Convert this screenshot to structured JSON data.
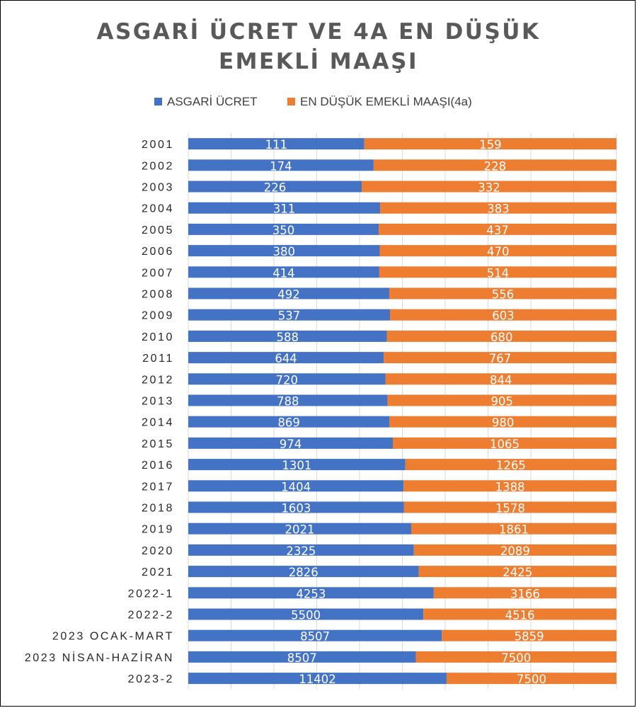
{
  "chart_data": {
    "type": "bar",
    "orientation": "horizontal",
    "stacked": "100%",
    "title_lines": [
      "ASGARİ ÜCRET VE 4A EN DÜŞÜK",
      "EMEKLİ MAAŞI"
    ],
    "legend_position": "top",
    "colors": {
      "asgari": "#4472C4",
      "emekli": "#ED7D31",
      "grid": "#D9D9D9"
    },
    "categories": [
      "2001",
      "2002",
      "2003",
      "2004",
      "2005",
      "2006",
      "2007",
      "2008",
      "2009",
      "2010",
      "2011",
      "2012",
      "2013",
      "2014",
      "2015",
      "2016",
      "2017",
      "2018",
      "2019",
      "2020",
      "2021",
      "2022-1",
      "2022-2",
      "2023 OCAK-MART",
      "2023 NİSAN-HAZİRAN",
      "2023-2"
    ],
    "series": [
      {
        "name": "ASGARİ ÜCRET",
        "color": "#4472C4",
        "values": [
          111,
          174,
          226,
          311,
          350,
          380,
          414,
          492,
          537,
          588,
          644,
          720,
          788,
          869,
          974,
          1301,
          1404,
          1603,
          2021,
          2325,
          2826,
          4253,
          5500,
          8507,
          8507,
          11402
        ]
      },
      {
        "name": "EN DÜŞÜK EMEKLİ MAAŞI(4a)",
        "color": "#ED7D31",
        "values": [
          159,
          228,
          332,
          383,
          437,
          470,
          514,
          556,
          603,
          680,
          767,
          844,
          905,
          980,
          1065,
          1265,
          1388,
          1578,
          1861,
          2089,
          2425,
          3166,
          4516,
          5859,
          7500,
          7500
        ]
      }
    ]
  }
}
